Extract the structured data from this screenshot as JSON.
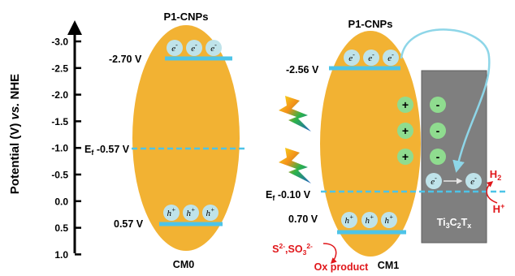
{
  "axis": {
    "label_prefix": "Potential (V) ",
    "label_vs": "vs.",
    "label_suffix": " NHE",
    "ticks": [
      "-3.0",
      "-2.5",
      "-2.0",
      "-1.5",
      "-1.0",
      "-0.5",
      "0.0",
      "0.5",
      "1.0"
    ]
  },
  "cm0": {
    "name": "CM0",
    "top_label": "P1-CNPs",
    "cb_potential": "-2.70 V",
    "vb_potential": "0.57 V",
    "fermi_symbol": "E",
    "fermi_sub": "f",
    "fermi_value": " -0.57 V"
  },
  "cm1": {
    "name": "CM1",
    "top_label": "P1-CNPs",
    "cb_potential": "-2.56 V",
    "vb_potential": "0.70 V",
    "fermi_symbol": "E",
    "fermi_sub": "f",
    "fermi_value": " -0.10 V"
  },
  "mxene": {
    "l1": "Ti",
    "s1": "3",
    "l2": "C",
    "s2": "2",
    "l3": "T",
    "s3": "x",
    "plus": "+",
    "minus": "-"
  },
  "carriers": {
    "electron_base": "e",
    "electron_sup": "-",
    "hole_base": "h",
    "hole_sup": "+"
  },
  "reaction": {
    "h2_base": "H",
    "h2_sub": "2",
    "hplus_base": "H",
    "hplus_sup": "+",
    "s_base": "S",
    "s_sup": "2-",
    "so3_base": ",SO",
    "so3_sub": "3",
    "so3_sup": "2-",
    "ox_product": "Ox product"
  },
  "colors": {
    "ellipse": "#f2b233",
    "band": "#4dc4e8",
    "fermi": "#4dc4e8",
    "carrier": "#bfe3ea",
    "mxene": "#7f7f7f",
    "charge": "#8fdc8f",
    "reaction": "#e0161a",
    "arrow": "#8ed6e8"
  }
}
